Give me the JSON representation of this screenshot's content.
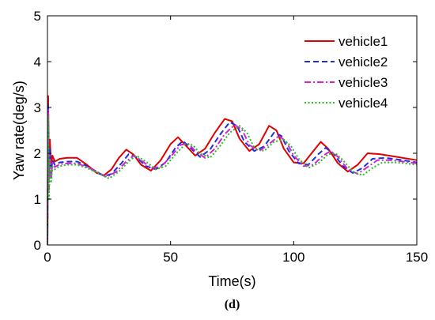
{
  "chart_data": {
    "type": "line",
    "xlabel": "Time(s)",
    "ylabel": "Yaw rate(deg/s)",
    "panel_label": "(d)",
    "xlim": [
      0,
      150
    ],
    "ylim": [
      0,
      5
    ],
    "xticks": [
      0,
      50,
      100,
      150
    ],
    "yticks": [
      0,
      1,
      2,
      3,
      4,
      5
    ],
    "legend_position": "top-right",
    "series": [
      {
        "name": "vehicle1",
        "color": "#e00000",
        "dash": "solid",
        "points": [
          [
            0,
            0
          ],
          [
            0.3,
            3.25
          ],
          [
            0.6,
            1.6
          ],
          [
            1,
            2.3
          ],
          [
            1.5,
            1.7
          ],
          [
            2,
            1.95
          ],
          [
            3,
            1.82
          ],
          [
            5,
            1.88
          ],
          [
            8,
            1.9
          ],
          [
            12,
            1.9
          ],
          [
            16,
            1.75
          ],
          [
            20,
            1.57
          ],
          [
            23,
            1.52
          ],
          [
            26,
            1.65
          ],
          [
            29,
            1.9
          ],
          [
            32,
            2.08
          ],
          [
            35,
            1.97
          ],
          [
            38,
            1.75
          ],
          [
            42,
            1.62
          ],
          [
            46,
            1.85
          ],
          [
            50,
            2.2
          ],
          [
            53,
            2.35
          ],
          [
            56,
            2.18
          ],
          [
            60,
            1.95
          ],
          [
            64,
            2.1
          ],
          [
            68,
            2.45
          ],
          [
            72,
            2.75
          ],
          [
            75,
            2.7
          ],
          [
            78,
            2.32
          ],
          [
            82,
            2.05
          ],
          [
            86,
            2.2
          ],
          [
            90,
            2.6
          ],
          [
            93,
            2.5
          ],
          [
            96,
            2.1
          ],
          [
            100,
            1.8
          ],
          [
            104,
            1.78
          ],
          [
            108,
            2.05
          ],
          [
            111,
            2.25
          ],
          [
            114,
            2.1
          ],
          [
            118,
            1.78
          ],
          [
            122,
            1.6
          ],
          [
            126,
            1.75
          ],
          [
            130,
            2.0
          ],
          [
            135,
            1.98
          ],
          [
            142,
            1.92
          ],
          [
            150,
            1.85
          ]
        ]
      },
      {
        "name": "vehicle2",
        "color": "#1f2fd6",
        "dash": "dashed",
        "points": [
          [
            0,
            0
          ],
          [
            0.3,
            3.05
          ],
          [
            0.6,
            1.4
          ],
          [
            1,
            2.1
          ],
          [
            1.5,
            1.55
          ],
          [
            2,
            1.85
          ],
          [
            3,
            1.75
          ],
          [
            5,
            1.8
          ],
          [
            8,
            1.82
          ],
          [
            12,
            1.82
          ],
          [
            16,
            1.72
          ],
          [
            20,
            1.6
          ],
          [
            23,
            1.5
          ],
          [
            26,
            1.55
          ],
          [
            30,
            1.78
          ],
          [
            33,
            1.98
          ],
          [
            36,
            1.92
          ],
          [
            40,
            1.72
          ],
          [
            44,
            1.65
          ],
          [
            48,
            1.8
          ],
          [
            52,
            2.12
          ],
          [
            55,
            2.27
          ],
          [
            58,
            2.12
          ],
          [
            62,
            1.92
          ],
          [
            66,
            2.08
          ],
          [
            70,
            2.4
          ],
          [
            74,
            2.68
          ],
          [
            77,
            2.6
          ],
          [
            80,
            2.25
          ],
          [
            84,
            2.05
          ],
          [
            88,
            2.15
          ],
          [
            92,
            2.45
          ],
          [
            95,
            2.38
          ],
          [
            98,
            2.05
          ],
          [
            102,
            1.78
          ],
          [
            106,
            1.75
          ],
          [
            110,
            1.98
          ],
          [
            113,
            2.12
          ],
          [
            116,
            2.0
          ],
          [
            120,
            1.72
          ],
          [
            124,
            1.57
          ],
          [
            128,
            1.68
          ],
          [
            132,
            1.88
          ],
          [
            137,
            1.9
          ],
          [
            143,
            1.86
          ],
          [
            150,
            1.8
          ]
        ]
      },
      {
        "name": "vehicle3",
        "color": "#d61fd6",
        "dash": "dashdot",
        "points": [
          [
            0,
            0
          ],
          [
            0.3,
            2.95
          ],
          [
            0.6,
            1.2
          ],
          [
            1,
            1.95
          ],
          [
            1.5,
            1.45
          ],
          [
            2,
            1.78
          ],
          [
            3,
            1.7
          ],
          [
            5,
            1.76
          ],
          [
            8,
            1.78
          ],
          [
            12,
            1.78
          ],
          [
            16,
            1.7
          ],
          [
            20,
            1.6
          ],
          [
            24,
            1.48
          ],
          [
            28,
            1.6
          ],
          [
            32,
            1.82
          ],
          [
            35,
            1.95
          ],
          [
            38,
            1.85
          ],
          [
            42,
            1.68
          ],
          [
            46,
            1.7
          ],
          [
            50,
            1.92
          ],
          [
            54,
            2.18
          ],
          [
            57,
            2.22
          ],
          [
            60,
            2.05
          ],
          [
            64,
            1.9
          ],
          [
            68,
            2.1
          ],
          [
            72,
            2.42
          ],
          [
            76,
            2.62
          ],
          [
            79,
            2.52
          ],
          [
            82,
            2.18
          ],
          [
            86,
            2.05
          ],
          [
            90,
            2.2
          ],
          [
            94,
            2.38
          ],
          [
            97,
            2.25
          ],
          [
            100,
            1.95
          ],
          [
            104,
            1.72
          ],
          [
            108,
            1.75
          ],
          [
            112,
            1.95
          ],
          [
            115,
            2.05
          ],
          [
            118,
            1.92
          ],
          [
            122,
            1.65
          ],
          [
            126,
            1.55
          ],
          [
            130,
            1.7
          ],
          [
            134,
            1.85
          ],
          [
            140,
            1.85
          ],
          [
            150,
            1.78
          ]
        ]
      },
      {
        "name": "vehicle4",
        "color": "#1fbf1f",
        "dash": "dotted",
        "points": [
          [
            0,
            0
          ],
          [
            0.3,
            2.8
          ],
          [
            0.6,
            1.0
          ],
          [
            1,
            1.85
          ],
          [
            1.5,
            1.35
          ],
          [
            2,
            1.7
          ],
          [
            3,
            1.65
          ],
          [
            5,
            1.72
          ],
          [
            8,
            1.75
          ],
          [
            12,
            1.75
          ],
          [
            16,
            1.68
          ],
          [
            20,
            1.58
          ],
          [
            25,
            1.45
          ],
          [
            29,
            1.6
          ],
          [
            33,
            1.82
          ],
          [
            36,
            1.95
          ],
          [
            40,
            1.82
          ],
          [
            44,
            1.65
          ],
          [
            48,
            1.72
          ],
          [
            52,
            1.98
          ],
          [
            56,
            2.2
          ],
          [
            59,
            2.18
          ],
          [
            62,
            2.0
          ],
          [
            66,
            1.9
          ],
          [
            70,
            2.15
          ],
          [
            74,
            2.45
          ],
          [
            78,
            2.6
          ],
          [
            81,
            2.45
          ],
          [
            84,
            2.12
          ],
          [
            88,
            2.05
          ],
          [
            92,
            2.25
          ],
          [
            96,
            2.3
          ],
          [
            99,
            2.15
          ],
          [
            102,
            1.88
          ],
          [
            106,
            1.68
          ],
          [
            110,
            1.78
          ],
          [
            114,
            1.98
          ],
          [
            117,
            2.0
          ],
          [
            120,
            1.85
          ],
          [
            124,
            1.6
          ],
          [
            128,
            1.52
          ],
          [
            132,
            1.68
          ],
          [
            136,
            1.8
          ],
          [
            142,
            1.8
          ],
          [
            150,
            1.75
          ]
        ]
      }
    ]
  }
}
